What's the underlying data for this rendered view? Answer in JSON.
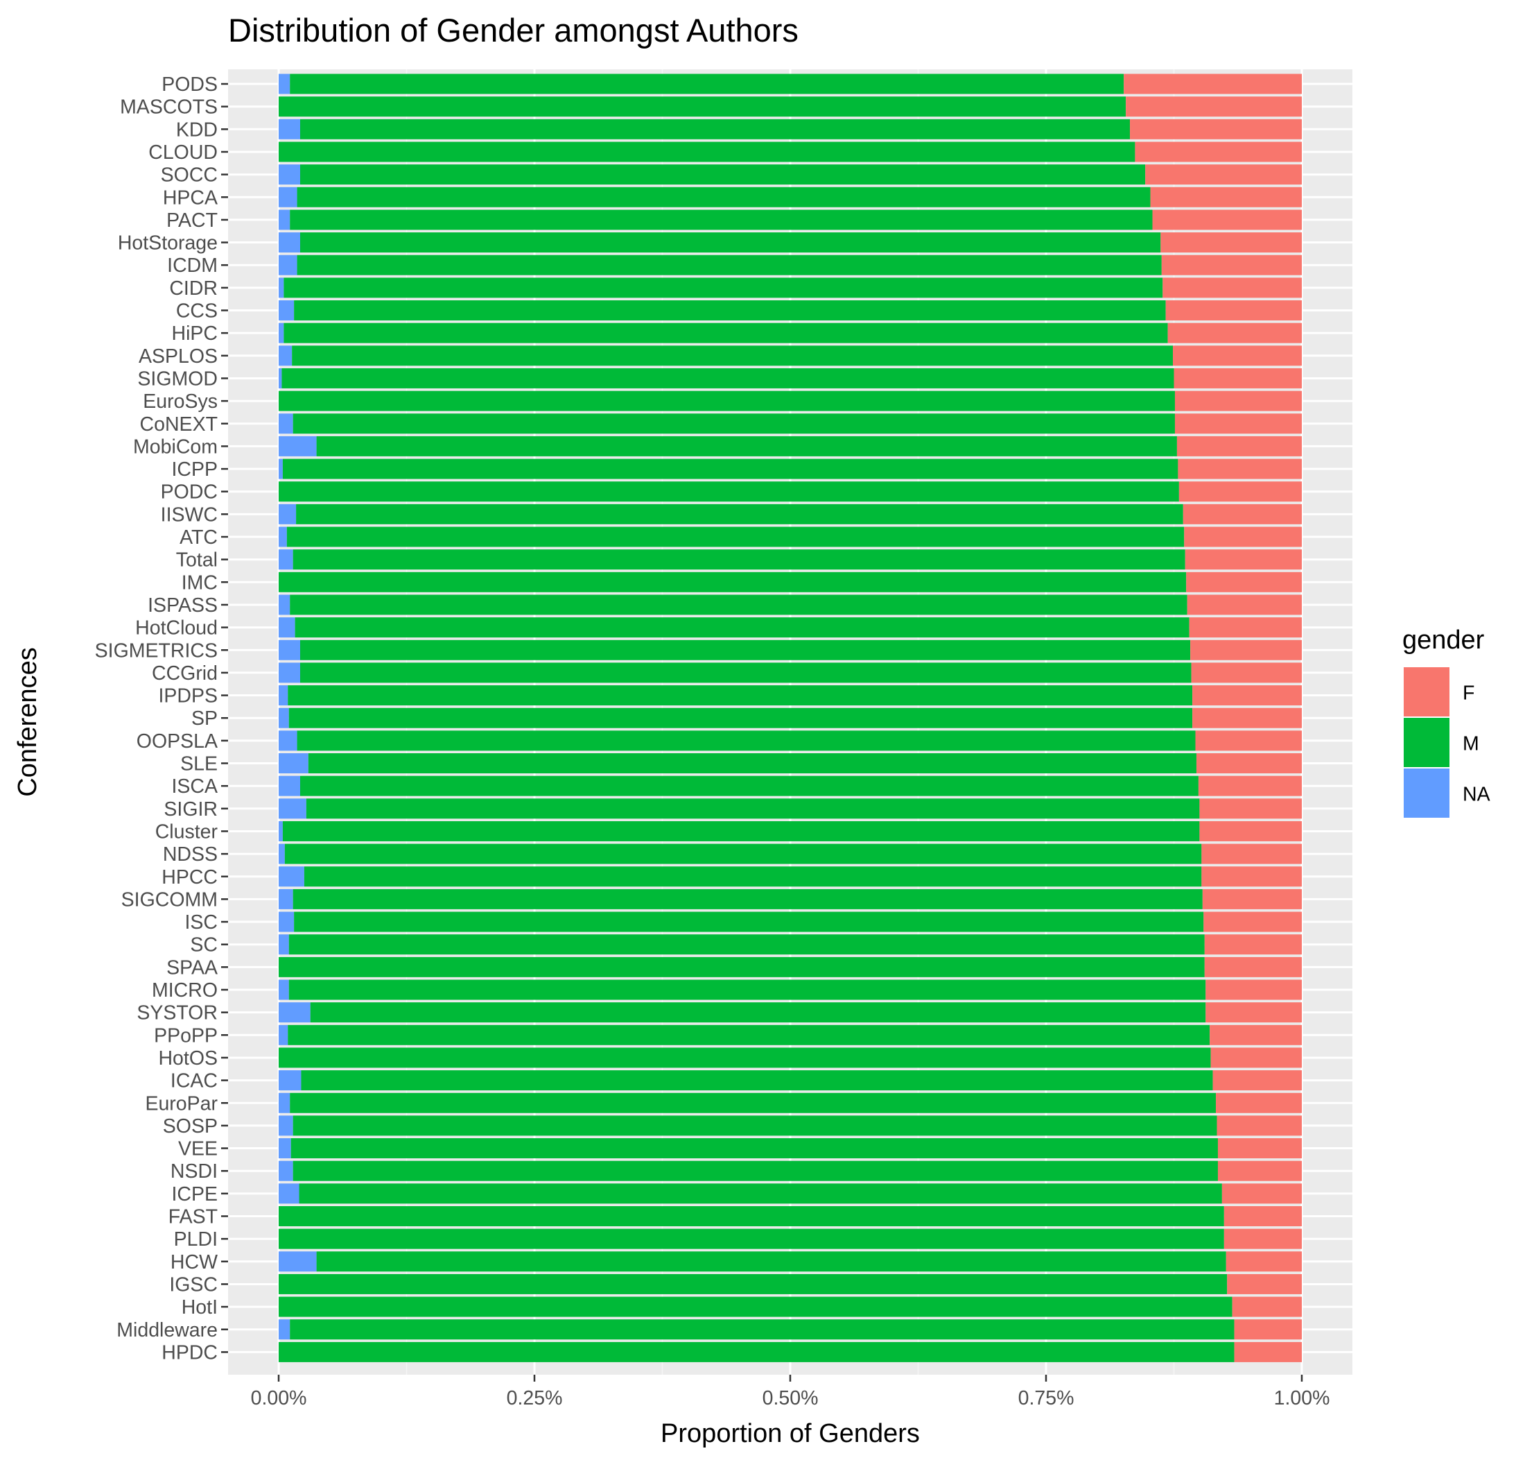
{
  "chart_data": {
    "type": "bar",
    "orientation": "horizontal",
    "stacked": true,
    "title": "Distribution of Gender amongst Authors",
    "xlabel": "Proportion of Genders",
    "ylabel": "Conferences",
    "xlim": [
      0,
      1
    ],
    "x_ticks": [
      0,
      0.25,
      0.5,
      0.75,
      1.0
    ],
    "x_tick_labels": [
      "0.00%",
      "0.25%",
      "0.50%",
      "0.75%",
      "1.00%"
    ],
    "grid": true,
    "background": "#ebebeb",
    "legend": {
      "title": "gender",
      "position": "right",
      "entries": [
        {
          "label": "F",
          "color": "#F8766D"
        },
        {
          "label": "M",
          "color": "#00BA38"
        },
        {
          "label": "NA",
          "color": "#619CFF"
        }
      ]
    },
    "stack_order": [
      "NA",
      "M",
      "F"
    ],
    "categories": [
      "PODS",
      "MASCOTS",
      "KDD",
      "CLOUD",
      "SOCC",
      "HPCA",
      "PACT",
      "HotStorage",
      "ICDM",
      "CIDR",
      "CCS",
      "HiPC",
      "ASPLOS",
      "SIGMOD",
      "EuroSys",
      "CoNEXT",
      "MobiCom",
      "ICPP",
      "PODC",
      "IISWC",
      "ATC",
      "Total",
      "IMC",
      "ISPASS",
      "HotCloud",
      "SIGMETRICS",
      "CCGrid",
      "IPDPS",
      "SP",
      "OOPSLA",
      "SLE",
      "ISCA",
      "SIGIR",
      "Cluster",
      "NDSS",
      "HPCC",
      "SIGCOMM",
      "ISC",
      "SC",
      "SPAA",
      "MICRO",
      "SYSTOR",
      "PPoPP",
      "HotOS",
      "ICAC",
      "EuroPar",
      "SOSP",
      "VEE",
      "NSDI",
      "ICPE",
      "FAST",
      "PLDI",
      "HCW",
      "IGSC",
      "HotI",
      "Middleware",
      "HPDC"
    ],
    "series": [
      {
        "name": "F",
        "color": "#F8766D",
        "values": [
          0.174,
          0.172,
          0.168,
          0.163,
          0.153,
          0.148,
          0.146,
          0.138,
          0.137,
          0.136,
          0.133,
          0.131,
          0.126,
          0.125,
          0.124,
          0.124,
          0.122,
          0.121,
          0.12,
          0.116,
          0.115,
          0.114,
          0.113,
          0.112,
          0.11,
          0.109,
          0.108,
          0.107,
          0.107,
          0.104,
          0.103,
          0.101,
          0.1,
          0.1,
          0.098,
          0.098,
          0.097,
          0.096,
          0.095,
          0.095,
          0.094,
          0.094,
          0.09,
          0.089,
          0.087,
          0.084,
          0.083,
          0.082,
          0.082,
          0.078,
          0.076,
          0.076,
          0.074,
          0.073,
          0.068,
          0.066,
          0.066
        ]
      },
      {
        "name": "M",
        "color": "#00BA38",
        "values": [
          0.815,
          0.828,
          0.811,
          0.837,
          0.826,
          0.834,
          0.843,
          0.841,
          0.845,
          0.859,
          0.852,
          0.864,
          0.861,
          0.872,
          0.876,
          0.862,
          0.841,
          0.875,
          0.88,
          0.867,
          0.877,
          0.872,
          0.887,
          0.877,
          0.874,
          0.87,
          0.871,
          0.884,
          0.883,
          0.878,
          0.868,
          0.878,
          0.873,
          0.896,
          0.896,
          0.877,
          0.889,
          0.889,
          0.895,
          0.905,
          0.896,
          0.875,
          0.901,
          0.911,
          0.891,
          0.905,
          0.903,
          0.906,
          0.904,
          0.902,
          0.924,
          0.924,
          0.889,
          0.927,
          0.932,
          0.923,
          0.934
        ]
      },
      {
        "name": "NA",
        "color": "#619CFF",
        "values": [
          0.011,
          0.0,
          0.021,
          0.0,
          0.021,
          0.018,
          0.011,
          0.021,
          0.018,
          0.005,
          0.015,
          0.005,
          0.013,
          0.003,
          0.0,
          0.014,
          0.037,
          0.004,
          0.0,
          0.017,
          0.008,
          0.014,
          0.0,
          0.011,
          0.016,
          0.021,
          0.021,
          0.009,
          0.01,
          0.018,
          0.029,
          0.021,
          0.027,
          0.004,
          0.006,
          0.025,
          0.014,
          0.015,
          0.01,
          0.0,
          0.01,
          0.031,
          0.009,
          0.0,
          0.022,
          0.011,
          0.014,
          0.012,
          0.014,
          0.02,
          0.0,
          0.0,
          0.037,
          0.0,
          0.0,
          0.011,
          0.0
        ]
      }
    ]
  }
}
